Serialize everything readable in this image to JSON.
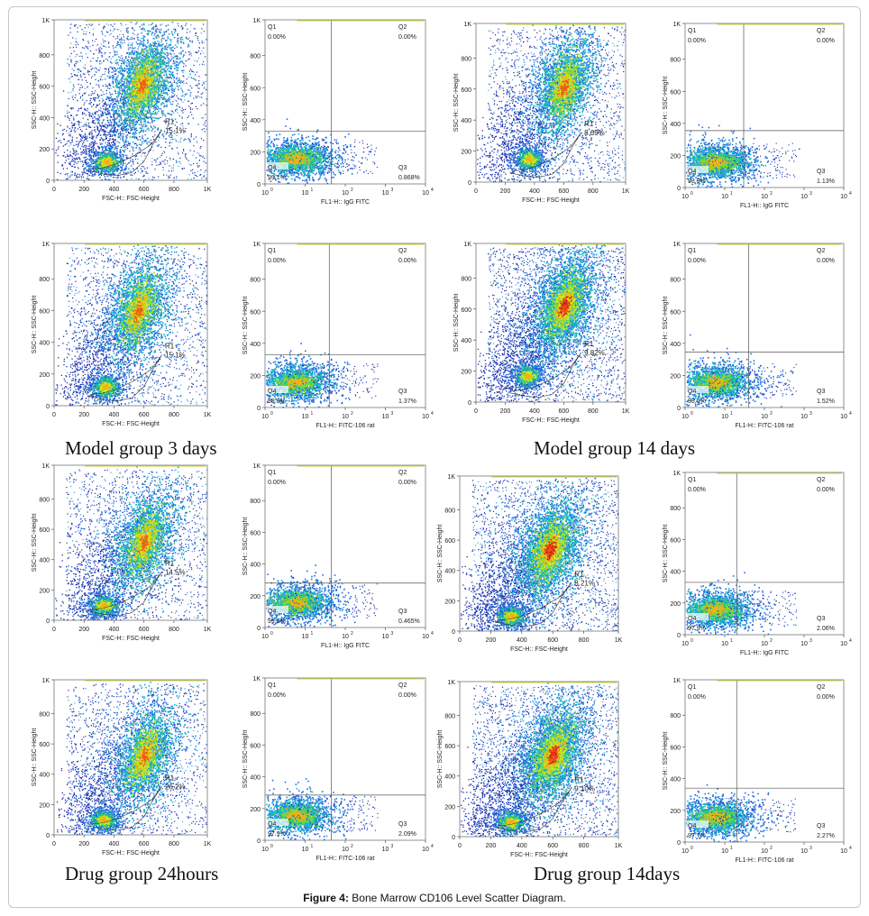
{
  "caption": {
    "bold": "Figure 4:",
    "text": "Bone Marrow CD106 Level Scatter Diagram."
  },
  "group_labels": {
    "model_3_days": "Model group 3 days",
    "model_14_days": "Model group 14 days",
    "drug_24_hours": "Drug group 24hours",
    "drug_14_days": "Drug group 14days"
  },
  "chart_data": [
    {
      "type": "scatter",
      "kind": "fsc",
      "xlabel": "FSC-H:: FSC-Height",
      "ylabel": "SSC-H:: SSC-Height",
      "xlim": [
        0,
        1023
      ],
      "ylim": [
        0,
        1023
      ],
      "xticks": [
        "0",
        "200",
        "400",
        "600",
        "800",
        "1K"
      ],
      "yticks": [
        "0",
        "200",
        "400",
        "600",
        "800",
        "1K"
      ],
      "gate": {
        "name": "R1",
        "percent": "15.1%"
      },
      "clusters": [
        {
          "cx": 590,
          "cy": 610,
          "density": "high"
        },
        {
          "cx": 350,
          "cy": 120,
          "density": "medium"
        }
      ]
    },
    {
      "type": "scatter",
      "kind": "fl",
      "xlabel": "FL1-H:: IgG FITC",
      "ylabel": "SSC-H:: SSC-Height",
      "xlim": [
        1,
        10000
      ],
      "ylim": [
        0,
        1023
      ],
      "xticks": [
        "10",
        "10",
        "10",
        "10",
        "10"
      ],
      "xexp": [
        "0",
        "1",
        "2",
        "3",
        "4"
      ],
      "yticks": [
        "0",
        "200",
        "400",
        "600",
        "800",
        "1K"
      ],
      "quadrants": {
        "Q1": "0.00%",
        "Q2": "0.00%",
        "Q3": "0.868%",
        "Q4": "99.1%"
      },
      "divider": {
        "x": 45,
        "y": 330
      }
    },
    {
      "type": "scatter",
      "kind": "fsc",
      "xlabel": "FSC-H:: FSC-Height",
      "ylabel": "SSC-H:: SSC-Height",
      "xlim": [
        0,
        1023
      ],
      "ylim": [
        0,
        1023
      ],
      "xticks": [
        "0",
        "200",
        "400",
        "600",
        "800",
        "1K"
      ],
      "yticks": [
        "0",
        "200",
        "400",
        "600",
        "800",
        "1K"
      ],
      "gate": {
        "name": "R1",
        "percent": "8.69%"
      },
      "clusters": [
        {
          "cx": 600,
          "cy": 620,
          "density": "high"
        },
        {
          "cx": 360,
          "cy": 150,
          "density": "medium"
        }
      ]
    },
    {
      "type": "scatter",
      "kind": "fl",
      "xlabel": "FL1-H:: IgG FITC",
      "ylabel": "SSC-H:: SSC-Height",
      "xlim": [
        1,
        10000
      ],
      "ylim": [
        0,
        1023
      ],
      "xticks": [
        "10",
        "10",
        "10",
        "10",
        "10"
      ],
      "xexp": [
        "0",
        "1",
        "2",
        "3",
        "4"
      ],
      "yticks": [
        "0",
        "200",
        "400",
        "600",
        "800",
        "1K"
      ],
      "quadrants": {
        "Q1": "0.00%",
        "Q2": "0.00%",
        "Q3": "1.13%",
        "Q4": "98.9%"
      },
      "divider": {
        "x": 30,
        "y": 355
      }
    },
    {
      "type": "scatter",
      "kind": "fsc",
      "xlabel": "FSC-H:: FSC-Height",
      "ylabel": "SSC-H:: SSC-Height",
      "xlim": [
        0,
        1023
      ],
      "ylim": [
        0,
        1023
      ],
      "xticks": [
        "0",
        "200",
        "400",
        "600",
        "800",
        "1K"
      ],
      "yticks": [
        "0",
        "200",
        "400",
        "600",
        "800",
        "1K"
      ],
      "gate": {
        "name": "R1",
        "percent": "15.1%"
      },
      "clusters": [
        {
          "cx": 560,
          "cy": 600,
          "density": "high"
        },
        {
          "cx": 340,
          "cy": 120,
          "density": "medium"
        }
      ]
    },
    {
      "type": "scatter",
      "kind": "fl",
      "xlabel": "FL1-H:: FITC-106 rat",
      "ylabel": "SSC-H:: SSC-Height",
      "xlim": [
        1,
        10000
      ],
      "ylim": [
        0,
        1023
      ],
      "xticks": [
        "10",
        "10",
        "10",
        "10",
        "10"
      ],
      "xexp": [
        "0",
        "1",
        "2",
        "3",
        "4"
      ],
      "yticks": [
        "0",
        "200",
        "400",
        "600",
        "800",
        "1K"
      ],
      "quadrants": {
        "Q1": "0.00%",
        "Q2": "0.00%",
        "Q3": "1.37%",
        "Q4": "98.6%"
      },
      "divider": {
        "x": 40,
        "y": 330
      }
    },
    {
      "type": "scatter",
      "kind": "fsc",
      "xlabel": "FSC-H:: FSC-Height",
      "ylabel": "SSC-H:: SSC-Height",
      "xlim": [
        0,
        1023
      ],
      "ylim": [
        0,
        1023
      ],
      "xticks": [
        "0",
        "200",
        "400",
        "600",
        "800",
        "1K"
      ],
      "yticks": [
        "0",
        "200",
        "400",
        "600",
        "800",
        "1K"
      ],
      "gate": {
        "name": "R1",
        "percent": "9.82%"
      },
      "clusters": [
        {
          "cx": 600,
          "cy": 620,
          "density": "very-high"
        },
        {
          "cx": 350,
          "cy": 170,
          "density": "medium"
        }
      ]
    },
    {
      "type": "scatter",
      "kind": "fl",
      "xlabel": "FL1-H:: FITC-106 rat",
      "ylabel": "SSC-H:: SSC-Height",
      "xlim": [
        1,
        10000
      ],
      "ylim": [
        0,
        1023
      ],
      "xticks": [
        "10",
        "10",
        "10",
        "10",
        "10"
      ],
      "xexp": [
        "0",
        "1",
        "2",
        "3",
        "4"
      ],
      "yticks": [
        "0",
        "200",
        "400",
        "600",
        "800",
        "1K"
      ],
      "quadrants": {
        "Q1": "0.00%",
        "Q2": "0.00%",
        "Q3": "1.52%",
        "Q4": "98.5%"
      },
      "divider": {
        "x": 40,
        "y": 345
      }
    },
    {
      "type": "scatter",
      "kind": "fsc",
      "xlabel": "FSC-H:: FSC-Height",
      "ylabel": "SSC-H:: SSC-Height",
      "xlim": [
        0,
        1023
      ],
      "ylim": [
        0,
        1023
      ],
      "xticks": [
        "0",
        "200",
        "400",
        "600",
        "800",
        "1K"
      ],
      "yticks": [
        "0",
        "200",
        "400",
        "600",
        "800",
        "1K"
      ],
      "gate": {
        "name": "R1",
        "percent": "14.5%"
      },
      "clusters": [
        {
          "cx": 600,
          "cy": 520,
          "density": "high"
        },
        {
          "cx": 330,
          "cy": 100,
          "density": "medium"
        }
      ]
    },
    {
      "type": "scatter",
      "kind": "fl",
      "xlabel": "FL1-H:: IgG FITC",
      "ylabel": "SSC-H:: SSC-Height",
      "xlim": [
        1,
        10000
      ],
      "ylim": [
        0,
        1023
      ],
      "xticks": [
        "10",
        "10",
        "10",
        "10",
        "10"
      ],
      "xexp": [
        "0",
        "1",
        "2",
        "3",
        "4"
      ],
      "yticks": [
        "0",
        "200",
        "400",
        "600",
        "800",
        "1K"
      ],
      "quadrants": {
        "Q1": "0.00%",
        "Q2": "0.00%",
        "Q3": "0.465%",
        "Q4": "99.5%"
      },
      "divider": {
        "x": 45,
        "y": 280
      }
    },
    {
      "type": "scatter",
      "kind": "fsc",
      "xlabel": "FSC-H:: FSC-Height",
      "ylabel": "SSC-H:: SSC-Height",
      "xlim": [
        0,
        1023
      ],
      "ylim": [
        0,
        1023
      ],
      "xticks": [
        "0",
        "200",
        "400",
        "600",
        "800",
        "1K"
      ],
      "yticks": [
        "0",
        "200",
        "400",
        "600",
        "800",
        "1K"
      ],
      "gate": {
        "name": "R1",
        "percent": "8.21%"
      },
      "clusters": [
        {
          "cx": 580,
          "cy": 540,
          "density": "very-high"
        },
        {
          "cx": 330,
          "cy": 100,
          "density": "medium"
        }
      ]
    },
    {
      "type": "scatter",
      "kind": "fl",
      "xlabel": "FL1-H:: IgG FITC",
      "ylabel": "SSC-H:: SSC-Height",
      "xlim": [
        1,
        10000
      ],
      "ylim": [
        0,
        1023
      ],
      "xticks": [
        "10",
        "10",
        "10",
        "10",
        "10"
      ],
      "xexp": [
        "0",
        "1",
        "2",
        "3",
        "4"
      ],
      "yticks": [
        "0",
        "200",
        "400",
        "600",
        "800",
        "1K"
      ],
      "quadrants": {
        "Q1": "0.00%",
        "Q2": "0.00%",
        "Q3": "2.06%",
        "Q4": "97.9%"
      },
      "divider": {
        "x": 20,
        "y": 330
      }
    },
    {
      "type": "scatter",
      "kind": "fsc",
      "xlabel": "FSC-H:: FSC-Height",
      "ylabel": "SSC-H:: SSC-Height",
      "xlim": [
        0,
        1023
      ],
      "ylim": [
        0,
        1023
      ],
      "xticks": [
        "0",
        "200",
        "400",
        "600",
        "800",
        "1K"
      ],
      "yticks": [
        "0",
        "200",
        "400",
        "600",
        "800",
        "1K"
      ],
      "gate": {
        "name": "R1",
        "percent": "26.2%"
      },
      "clusters": [
        {
          "cx": 600,
          "cy": 520,
          "density": "high"
        },
        {
          "cx": 330,
          "cy": 100,
          "density": "medium"
        }
      ]
    },
    {
      "type": "scatter",
      "kind": "fl",
      "xlabel": "FL1-H:: FITC-106 rat",
      "ylabel": "SSC-H:: SSC-Height",
      "xlim": [
        1,
        10000
      ],
      "ylim": [
        0,
        1023
      ],
      "xticks": [
        "10",
        "10",
        "10",
        "10",
        "10"
      ],
      "xexp": [
        "0",
        "1",
        "2",
        "3",
        "4"
      ],
      "yticks": [
        "0",
        "200",
        "400",
        "600",
        "800",
        "1K"
      ],
      "quadrants": {
        "Q1": "0.00%",
        "Q2": "0.00%",
        "Q3": "2.09%",
        "Q4": "97.9%"
      },
      "divider": {
        "x": 45,
        "y": 285
      }
    },
    {
      "type": "scatter",
      "kind": "fsc",
      "xlabel": "FSC-H:: FSC-Height",
      "ylabel": "SSC-H:: SSC-Height",
      "xlim": [
        0,
        1023
      ],
      "ylim": [
        0,
        1023
      ],
      "xticks": [
        "0",
        "200",
        "400",
        "600",
        "800",
        "1K"
      ],
      "yticks": [
        "0",
        "200",
        "400",
        "600",
        "800",
        "1K"
      ],
      "gate": {
        "name": "R1",
        "percent": "9.10%"
      },
      "clusters": [
        {
          "cx": 600,
          "cy": 540,
          "density": "very-high"
        },
        {
          "cx": 330,
          "cy": 100,
          "density": "medium"
        }
      ]
    },
    {
      "type": "scatter",
      "kind": "fl",
      "xlabel": "FL1-H:: FITC-106 rat",
      "ylabel": "SSC-H:: SSC-Height",
      "xlim": [
        1,
        10000
      ],
      "ylim": [
        0,
        1023
      ],
      "xticks": [
        "10",
        "10",
        "10",
        "10",
        "10"
      ],
      "xexp": [
        "0",
        "1",
        "2",
        "3",
        "4"
      ],
      "yticks": [
        "0",
        "200",
        "400",
        "600",
        "800",
        "1K"
      ],
      "quadrants": {
        "Q1": "0.00%",
        "Q2": "0.00%",
        "Q3": "2.27%",
        "Q4": "97.7%"
      },
      "divider": {
        "x": 20,
        "y": 340
      }
    }
  ]
}
